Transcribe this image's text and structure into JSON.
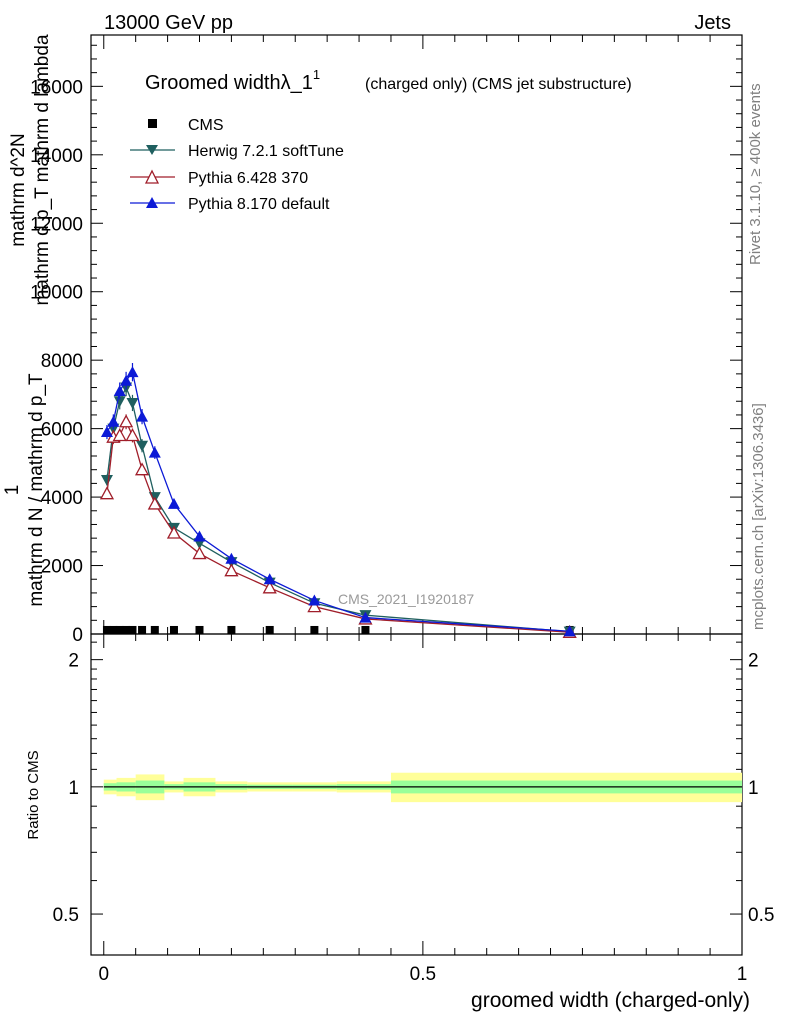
{
  "header": {
    "energy": "13000 GeV pp",
    "category": "Jets",
    "rivet": "Rivet 3.1.10, ≥ 400k events",
    "mcplots": "mcplots.cern.ch [arXiv:1306.3436]",
    "analysis": "CMS_2021_I1920187"
  },
  "colors": {
    "cms": "#000000",
    "herwig": "#1f5f5f",
    "pythia6": "#a01e2a",
    "pythia8": "#0c1ad6",
    "band_yellow": "#ffff99",
    "band_green": "#99ff99"
  },
  "chart_data": [
    {
      "type": "line",
      "title_main": "Groomed width",
      "title_sym": "λ_1",
      "title_sup": "1",
      "title_rest": "(charged only) (CMS jet substructure)",
      "ylabel_num": "mathrm d^2N",
      "ylabel_den": "mathrm d p_T mathrm d lambda",
      "ylabel_top_frac": "1",
      "ylabel_den_full": "mathrm d N / mathrm d p_T",
      "ylim": [
        0,
        17500
      ],
      "yticks": [
        0,
        2000,
        4000,
        6000,
        8000,
        10000,
        12000,
        14000,
        16000
      ],
      "ytick_labels": [
        "0",
        "2000",
        "4000",
        "6000",
        "8000",
        "10000",
        "12000",
        "14000",
        "16000"
      ],
      "xlim": [
        -0.02,
        1.0
      ],
      "legend": [
        "CMS",
        "Herwig 7.2.1 softTune",
        "Pythia 6.428 370",
        "Pythia 8.170 default"
      ],
      "series": [
        {
          "name": "CMS",
          "x": [
            0.005,
            0.015,
            0.025,
            0.035,
            0.045,
            0.06,
            0.08,
            0.11,
            0.15,
            0.2,
            0.26,
            0.33,
            0.41,
            0.73
          ],
          "values": [
            30,
            30,
            30,
            30,
            30,
            30,
            30,
            30,
            30,
            30,
            30,
            30,
            30,
            30
          ]
        },
        {
          "name": "Herwig 7.2.1 softTune",
          "x": [
            0.005,
            0.015,
            0.025,
            0.035,
            0.045,
            0.06,
            0.08,
            0.11,
            0.15,
            0.2,
            0.26,
            0.33,
            0.41,
            0.73
          ],
          "values": [
            4500,
            6000,
            6800,
            7200,
            6750,
            5500,
            4000,
            3100,
            2650,
            2100,
            1500,
            900,
            550,
            70
          ]
        },
        {
          "name": "Pythia 6.428 370",
          "x": [
            0.005,
            0.015,
            0.025,
            0.035,
            0.045,
            0.06,
            0.08,
            0.11,
            0.15,
            0.2,
            0.26,
            0.33,
            0.41,
            0.73
          ],
          "values": [
            4100,
            5750,
            5800,
            6200,
            5800,
            4800,
            3800,
            2950,
            2350,
            1850,
            1350,
            800,
            440,
            50
          ]
        },
        {
          "name": "Pythia 8.170 default",
          "x": [
            0.005,
            0.015,
            0.025,
            0.035,
            0.045,
            0.06,
            0.08,
            0.11,
            0.15,
            0.2,
            0.26,
            0.33,
            0.41,
            0.73
          ],
          "values": [
            5900,
            6200,
            7100,
            7400,
            7650,
            6350,
            5300,
            3800,
            2850,
            2200,
            1600,
            980,
            480,
            80
          ]
        }
      ]
    },
    {
      "type": "line",
      "ylabel": "Ratio to CMS",
      "xlabel": "groomed width (charged-only)",
      "ylim": [
        0.4,
        2.3
      ],
      "yticks": [
        0.5,
        1,
        2
      ],
      "ytick_labels": [
        "0.5",
        "1",
        "2"
      ],
      "xlim": [
        -0.02,
        1.0
      ],
      "xticks": [
        0,
        0.5,
        1
      ],
      "xtick_labels": [
        "0",
        "0.5",
        "1"
      ],
      "bands": {
        "edges": [
          0,
          0.02,
          0.05,
          0.095,
          0.125,
          0.175,
          0.225,
          0.295,
          0.365,
          0.45,
          1.0
        ],
        "yellow": [
          0.04,
          0.05,
          0.07,
          0.03,
          0.05,
          0.03,
          0.025,
          0.025,
          0.03,
          0.08
        ],
        "green": [
          0.02,
          0.025,
          0.035,
          0.015,
          0.025,
          0.015,
          0.012,
          0.012,
          0.015,
          0.035
        ]
      }
    }
  ]
}
